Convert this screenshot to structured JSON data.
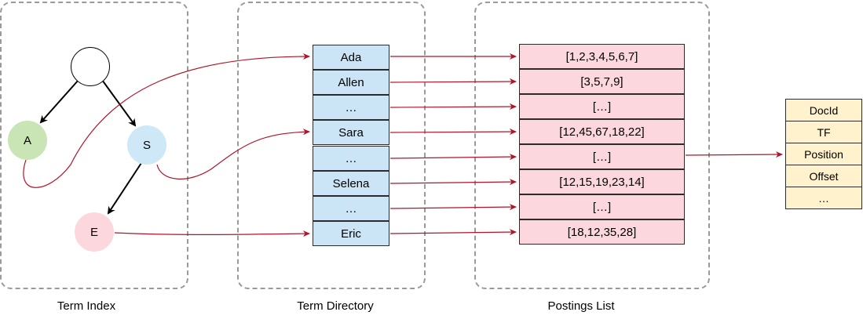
{
  "captions": {
    "term_index": "Term Index",
    "term_directory": "Term Directory",
    "postings_list": "Postings List"
  },
  "tree": {
    "root": "",
    "a": "A",
    "s": "S",
    "e": "E"
  },
  "directory": [
    "Ada",
    "Allen",
    "…",
    "Sara",
    "…",
    "Selena",
    "…",
    "Eric"
  ],
  "postings": [
    "[1,2,3,4,5,6,7]",
    "[3,5,7,9]",
    "[…]",
    "[12,45,67,18,22]",
    "[…]",
    "[12,15,19,23,14]",
    "[…]",
    "[18,12,35,28]"
  ],
  "attributes": [
    "DocId",
    "TF",
    "Position",
    "Offset",
    "…"
  ],
  "colors": {
    "link": "#b0152a",
    "node_a": "#c9e5b5",
    "node_s": "#cfe8f8",
    "node_e": "#fcd7de",
    "directory_fill": "#cce5f6",
    "postings_fill": "#fcd7de",
    "attribute_fill": "#fff2cc"
  }
}
